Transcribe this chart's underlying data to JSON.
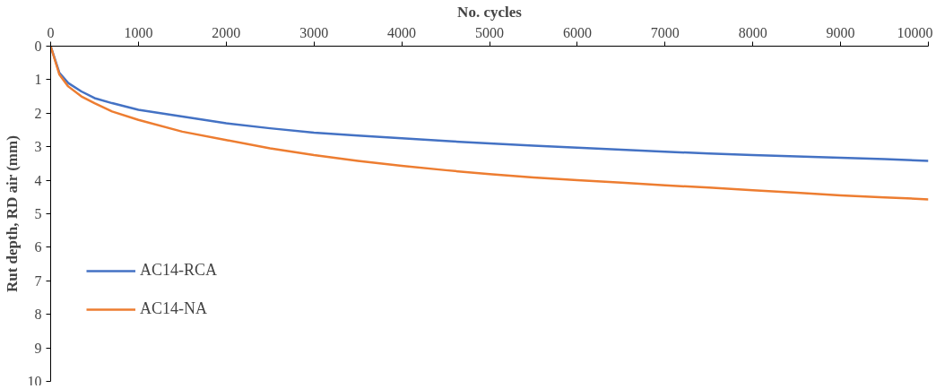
{
  "chart_data": {
    "type": "line",
    "xlabel": "No. cycles",
    "ylabel": "Rut depth, RD air (mm)",
    "xlim": [
      0,
      10000
    ],
    "xticks": [
      0,
      1000,
      2000,
      3000,
      4000,
      5000,
      6000,
      7000,
      8000,
      9000,
      10000
    ],
    "ylim": [
      10,
      0
    ],
    "yticks": [
      0,
      1,
      2,
      3,
      4,
      5,
      6,
      7,
      8,
      9,
      10
    ],
    "grid": false,
    "legend": "bottom left",
    "marker": "none",
    "line_style": "solid",
    "series": [
      {
        "name": "AC14-RCA",
        "color": "#4472c4",
        "x": [
          0,
          100,
          200,
          350,
          500,
          700,
          1000,
          1500,
          2000,
          2500,
          3000,
          3500,
          4000,
          4500,
          5000,
          5500,
          6000,
          6500,
          7000,
          7500,
          8000,
          8500,
          9000,
          9500,
          10000
        ],
        "values": [
          0,
          0.8,
          1.1,
          1.35,
          1.55,
          1.7,
          1.9,
          2.1,
          2.3,
          2.45,
          2.58,
          2.67,
          2.75,
          2.83,
          2.9,
          2.97,
          3.03,
          3.09,
          3.15,
          3.2,
          3.25,
          3.29,
          3.33,
          3.37,
          3.42
        ]
      },
      {
        "name": "AC14-NA",
        "color": "#ed7d31",
        "x": [
          0,
          100,
          200,
          350,
          500,
          700,
          1000,
          1500,
          2000,
          2500,
          3000,
          3500,
          4000,
          4500,
          5000,
          5500,
          6000,
          6500,
          7000,
          7500,
          8000,
          8500,
          9000,
          9500,
          10000
        ],
        "values": [
          0,
          0.85,
          1.2,
          1.5,
          1.7,
          1.95,
          2.2,
          2.55,
          2.8,
          3.05,
          3.25,
          3.42,
          3.57,
          3.7,
          3.82,
          3.92,
          4.0,
          4.07,
          4.15,
          4.22,
          4.3,
          4.37,
          4.45,
          4.51,
          4.57
        ]
      }
    ]
  }
}
